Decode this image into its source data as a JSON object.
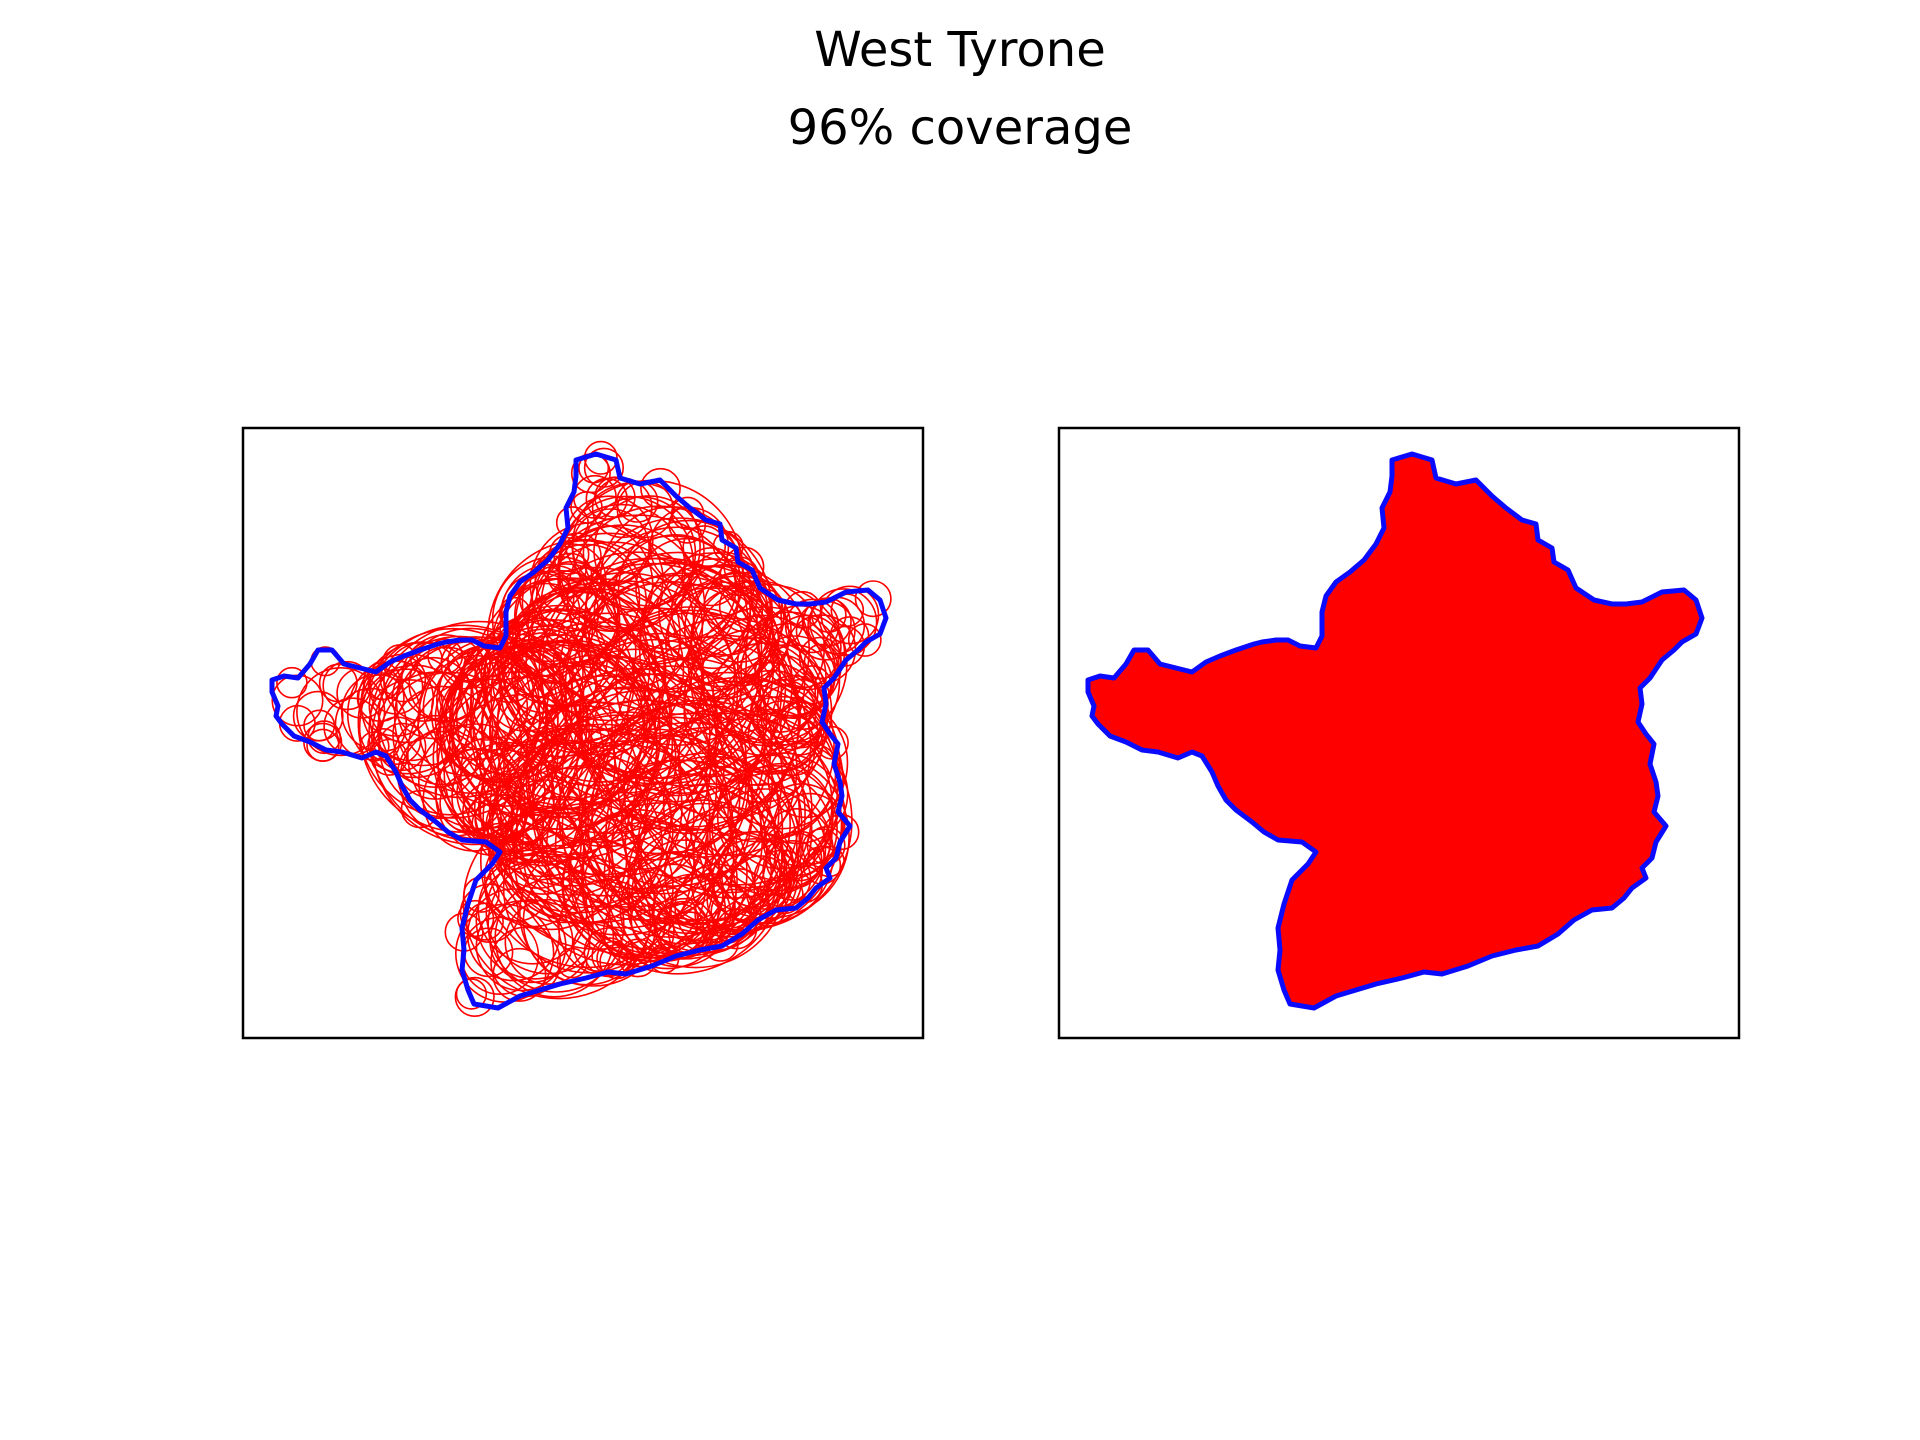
{
  "title": "West Tyrone",
  "subtitle": "96% coverage",
  "colors": {
    "boundary": "#0a0aff",
    "circles": "#ff0000",
    "fill": "#ff0000",
    "frame": "#000000",
    "background": "#ffffff"
  }
}
